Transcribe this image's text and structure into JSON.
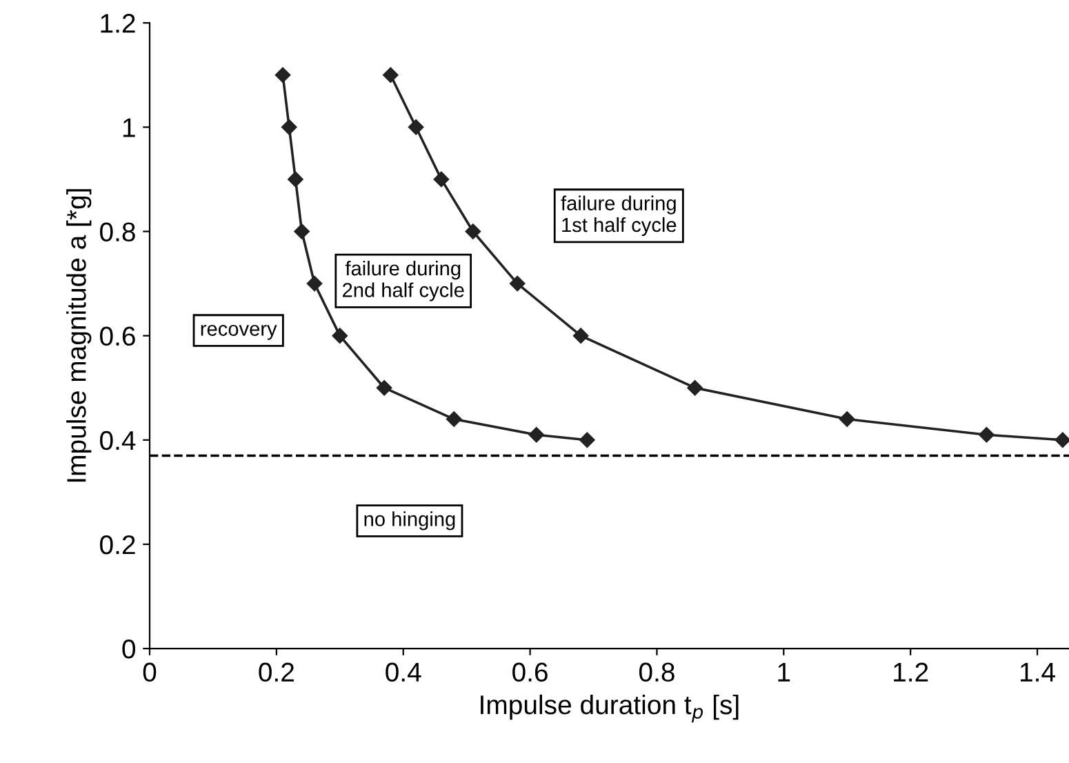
{
  "chart_data": {
    "type": "line",
    "xlabel": "Impulse duration t$_{p}$ [s]",
    "ylabel": "Impulse magnitude a [*g]",
    "xlim": [
      0,
      1.45
    ],
    "xticks": [
      0,
      0.2,
      0.4,
      0.6,
      0.8,
      1,
      1.2,
      1.4
    ],
    "ylim": [
      0,
      1.2
    ],
    "yticks": [
      0,
      0.2,
      0.4,
      0.6,
      0.8,
      1,
      1.2
    ],
    "marker": "diamond",
    "line_style": "solid",
    "grid": false,
    "legend": false,
    "series": [
      {
        "color": "#222222",
        "x": [
          0.21,
          0.22,
          0.23,
          0.24,
          0.26,
          0.3,
          0.37,
          0.48,
          0.61,
          0.69
        ],
        "values": [
          1.1,
          1.0,
          0.9,
          0.8,
          0.7,
          0.6,
          0.5,
          0.44,
          0.41,
          0.4
        ]
      },
      {
        "color": "#222222",
        "x": [
          0.38,
          0.42,
          0.46,
          0.51,
          0.58,
          0.68,
          0.86,
          1.1,
          1.32,
          1.44
        ],
        "values": [
          1.1,
          1.0,
          0.9,
          0.8,
          0.7,
          0.6,
          0.5,
          0.44,
          0.41,
          0.4
        ]
      }
    ],
    "ref_lines": [
      {
        "axis": "y",
        "value": 0.37,
        "color": "#000000",
        "line_style": "dashed"
      }
    ],
    "annotations": [
      "recovery",
      "failure during\n2nd half cycle",
      "failure during\n1st half cycle",
      "no hinging"
    ]
  }
}
